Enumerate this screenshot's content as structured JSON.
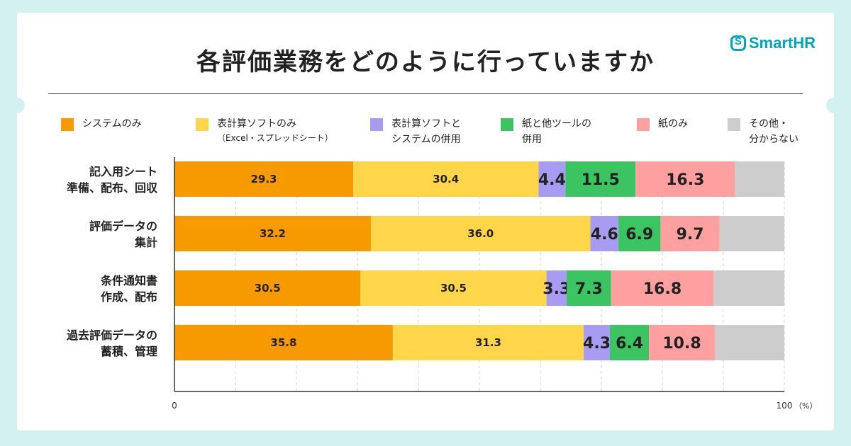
{
  "title": "各評価業務をどのように行っていますか",
  "logo": {
    "text": "SmartHR",
    "icon": "smarthr-logo-icon",
    "color": "#00a7b8"
  },
  "legend": [
    {
      "label": "システムのみ",
      "sub": "",
      "color": "#f79a00"
    },
    {
      "label": "表計算ソフトのみ",
      "sub": "（Excel・スプレッドシート）",
      "color": "#ffd54a"
    },
    {
      "label": "表計算ソフトと\nシステムの併用",
      "sub": "",
      "color": "#a79cf2"
    },
    {
      "label": "紙と他ツールの\n併用",
      "sub": "",
      "color": "#3cc463"
    },
    {
      "label": "紙のみ",
      "sub": "",
      "color": "#ffa0a0"
    },
    {
      "label": "その他・\n分からない",
      "sub": "",
      "color": "#cccccc"
    }
  ],
  "chart_data": {
    "type": "bar",
    "orientation": "horizontal",
    "stacked": true,
    "categories": [
      [
        "記入用シート",
        "準備、配布、回収"
      ],
      [
        "評価データの",
        "集計"
      ],
      [
        "条件通知書",
        "作成、配布"
      ],
      [
        "過去評価データの",
        "蓄積、管理"
      ]
    ],
    "series": [
      {
        "name": "システムのみ",
        "color": "#f79a00",
        "values": [
          29.3,
          32.2,
          30.5,
          35.8
        ]
      },
      {
        "name": "表計算ソフトのみ（Excel・スプレッドシート）",
        "color": "#ffd54a",
        "values": [
          30.4,
          36.0,
          30.5,
          31.3
        ]
      },
      {
        "name": "表計算ソフトとシステムの併用",
        "color": "#a79cf2",
        "values": [
          4.4,
          4.6,
          3.3,
          4.3
        ]
      },
      {
        "name": "紙と他ツールの併用",
        "color": "#3cc463",
        "values": [
          11.5,
          6.9,
          7.3,
          6.4
        ]
      },
      {
        "name": "紙のみ",
        "color": "#ffa0a0",
        "values": [
          16.3,
          9.7,
          16.8,
          10.8
        ]
      },
      {
        "name": "その他・分からない",
        "color": "#cccccc",
        "values": [
          8.1,
          10.6,
          11.6,
          11.4
        ]
      }
    ],
    "labeled_series": [
      0,
      1,
      2,
      3,
      4
    ],
    "xlim": [
      0,
      100
    ],
    "x_tick_labels": [
      "0",
      "100"
    ],
    "x_unit": "（%）",
    "grid": "vertical-dashed",
    "grid_step": 10
  }
}
